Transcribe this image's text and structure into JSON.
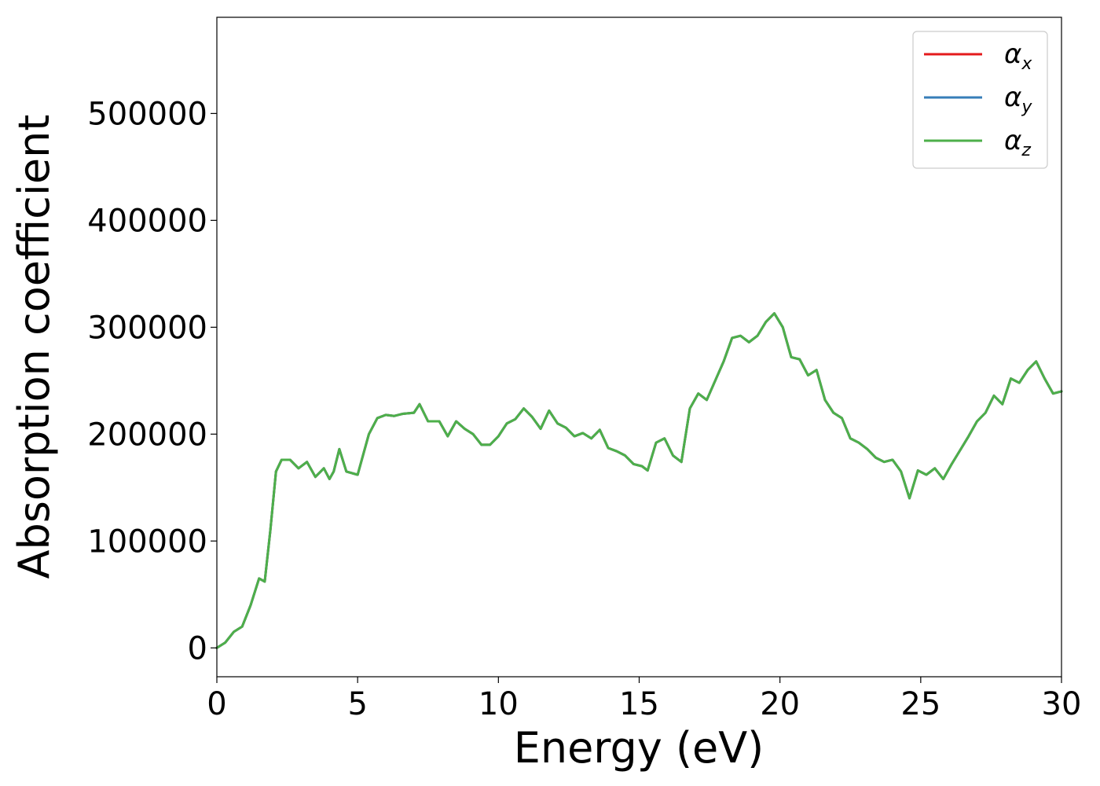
{
  "chart_data": {
    "type": "line",
    "title": "",
    "xlabel": "Energy (eV)",
    "ylabel": "Absorption coefficient",
    "xlim": [
      0,
      30
    ],
    "ylim": [
      -27000,
      590000
    ],
    "xticks": [
      0,
      5,
      10,
      15,
      20,
      25,
      30
    ],
    "yticks": [
      0,
      100000,
      200000,
      300000,
      400000,
      500000
    ],
    "xtick_labels": [
      "0",
      "5",
      "10",
      "15",
      "20",
      "25",
      "30"
    ],
    "ytick_labels": [
      "0",
      "100000",
      "200000",
      "300000",
      "400000",
      "500000"
    ],
    "grid": false,
    "legend": "top-right",
    "legend_entries": [
      {
        "symbol": "α",
        "sub": "x"
      },
      {
        "symbol": "α",
        "sub": "y"
      },
      {
        "symbol": "α",
        "sub": "z"
      }
    ],
    "series": [
      {
        "name": "α_x",
        "color": "#e41a1c"
      },
      {
        "name": "α_y",
        "color": "#377eb8"
      },
      {
        "name": "α_z",
        "color": "#4daf4a"
      }
    ],
    "x": [
      0,
      0.3,
      0.6,
      0.9,
      1.2,
      1.5,
      1.7,
      1.9,
      2.1,
      2.3,
      2.6,
      2.9,
      3.2,
      3.5,
      3.8,
      4.0,
      4.15,
      4.35,
      4.6,
      5.0,
      5.4,
      5.7,
      6.0,
      6.3,
      6.6,
      7.0,
      7.2,
      7.5,
      7.9,
      8.2,
      8.5,
      8.8,
      9.1,
      9.4,
      9.7,
      10.0,
      10.3,
      10.6,
      10.9,
      11.2,
      11.5,
      11.8,
      12.1,
      12.4,
      12.7,
      13.0,
      13.3,
      13.6,
      13.9,
      14.2,
      14.5,
      14.8,
      15.1,
      15.3,
      15.6,
      15.9,
      16.2,
      16.5,
      16.8,
      17.1,
      17.4,
      17.7,
      18.0,
      18.3,
      18.6,
      18.9,
      19.2,
      19.5,
      19.8,
      20.1,
      20.4,
      20.7,
      21.0,
      21.3,
      21.6,
      21.9,
      22.2,
      22.5,
      22.8,
      23.1,
      23.4,
      23.7,
      24.0,
      24.3,
      24.6,
      24.9,
      25.2,
      25.5,
      25.8,
      26.1,
      26.4,
      26.7,
      27.0,
      27.3,
      27.6,
      27.9,
      28.2,
      28.5,
      28.8,
      29.1,
      29.4,
      29.7,
      30.0
    ],
    "y": [
      0,
      5000,
      15000,
      20000,
      40000,
      65000,
      62000,
      110000,
      165000,
      176000,
      176000,
      168000,
      174000,
      160000,
      168000,
      158000,
      165000,
      186000,
      165000,
      162000,
      200000,
      215000,
      218000,
      217000,
      219000,
      220000,
      228000,
      212000,
      212000,
      198000,
      212000,
      205000,
      200000,
      190000,
      190000,
      198000,
      210000,
      214000,
      224000,
      216000,
      205000,
      222000,
      210000,
      206000,
      198000,
      201000,
      196000,
      204000,
      187000,
      184000,
      180000,
      172000,
      170000,
      166000,
      192000,
      196000,
      180000,
      174000,
      224000,
      238000,
      232000,
      250000,
      268000,
      290000,
      292000,
      286000,
      292000,
      305000,
      313000,
      300000,
      272000,
      270000,
      255000,
      260000,
      232000,
      220000,
      215000,
      196000,
      192000,
      186000,
      178000,
      174000,
      176000,
      165000,
      140000,
      166000,
      162000,
      168000,
      158000,
      172000,
      185000,
      198000,
      212000,
      220000,
      236000,
      228000,
      252000,
      248000,
      260000,
      268000,
      252000,
      238000,
      240000
    ]
  }
}
